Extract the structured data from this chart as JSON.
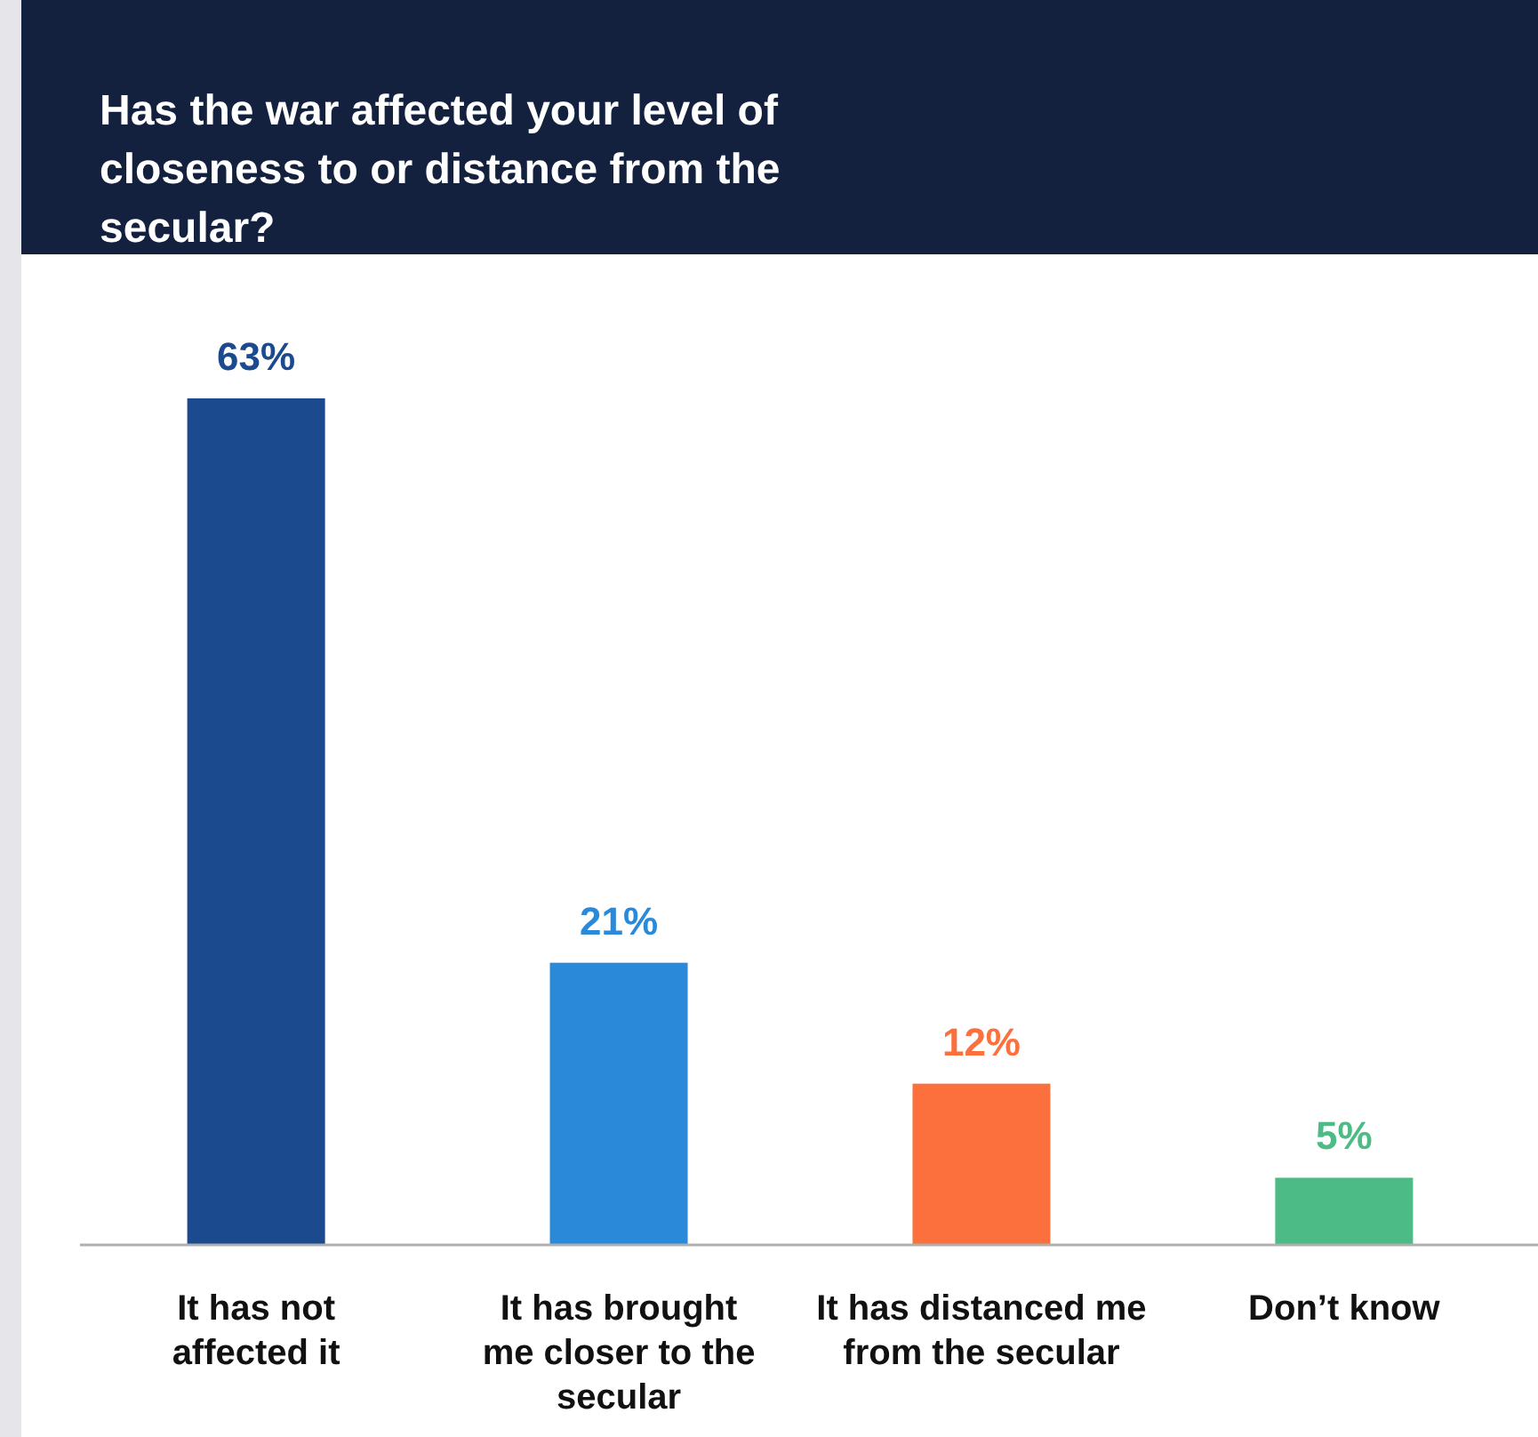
{
  "chart_data": {
    "type": "bar",
    "title": "Has the war affected your level of closeness to or distance from the secular?",
    "categories": [
      "It has not affected it",
      "It has brought me closer to the secular",
      "It has distanced me from the secular",
      "Don’t know"
    ],
    "values": [
      63,
      21,
      12,
      5
    ],
    "colors": [
      "#1b4a8e",
      "#2a8ad9",
      "#fc703e",
      "#4cbb85"
    ],
    "value_labels": [
      "63%",
      "21%",
      "12%",
      "5%"
    ]
  }
}
